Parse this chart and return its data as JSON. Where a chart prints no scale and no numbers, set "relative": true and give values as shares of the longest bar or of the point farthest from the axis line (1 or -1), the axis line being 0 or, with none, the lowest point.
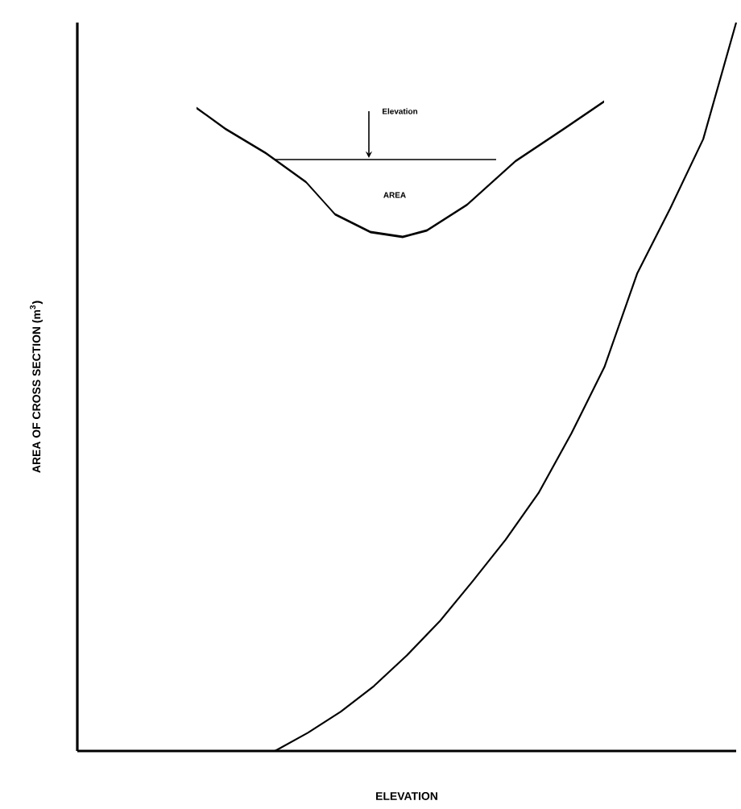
{
  "chart_data": {
    "type": "line",
    "relative": true,
    "xlabel": "ELEVATION",
    "ylabel": "AREA OF CROSS SECTION (m$^{3}$)",
    "categories": [
      null,
      null,
      null,
      null,
      null,
      null,
      null,
      null,
      null,
      null,
      null,
      null,
      null,
      null,
      null,
      null,
      null,
      null,
      null,
      null,
      null
    ],
    "values": [
      null,
      null,
      null,
      null,
      null,
      null,
      0,
      0.025,
      0.054,
      0.089,
      0.131,
      0.178,
      0.233,
      0.29,
      0.354,
      0.436,
      0.527,
      0.656,
      0.745,
      0.84,
      1
    ],
    "color": "#000000",
    "annotations": [
      "Elevation",
      "AREA"
    ]
  }
}
